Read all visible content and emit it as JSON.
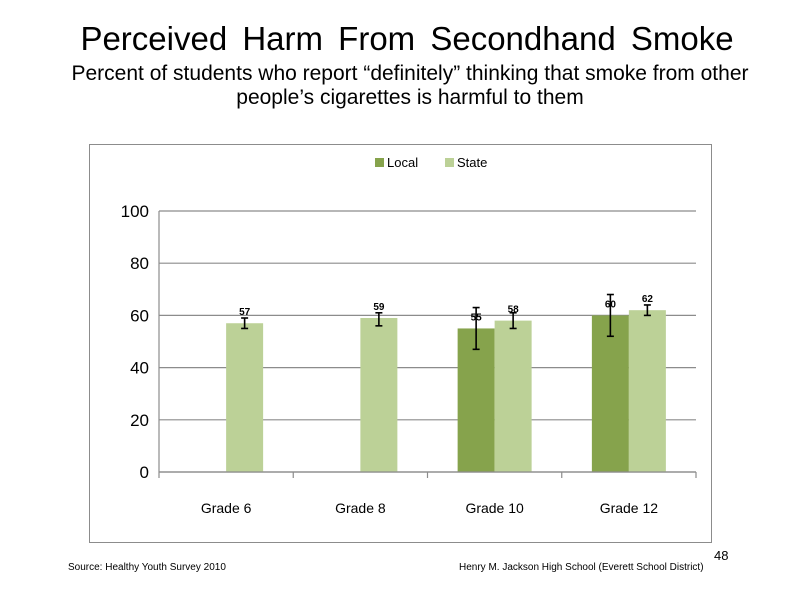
{
  "slide": {
    "title": "Perceived  Harm From Secondhand  Smoke",
    "subtitle": "Percent of students who report “definitely” thinking  that smoke from other people’s cigarettes is harmful to them",
    "source": "Source: Healthy  Youth Survey 2010",
    "credit": "Henry M.  Jackson High  School (Everett School District)",
    "page_number": "48"
  },
  "chart_data": {
    "type": "bar",
    "categories": [
      "Grade 6",
      "Grade 8",
      "Grade 10",
      "Grade 12"
    ],
    "series": [
      {
        "name": "Local",
        "color": "#86a34c",
        "values": [
          null,
          null,
          55,
          60
        ],
        "labels": [
          "",
          "",
          "55",
          "60"
        ],
        "error_low": [
          null,
          null,
          47,
          52
        ],
        "error_high": [
          null,
          null,
          63,
          68
        ]
      },
      {
        "name": "State",
        "color": "#bcd197",
        "values": [
          57,
          59,
          58,
          62
        ],
        "labels": [
          "57",
          "59",
          "58",
          "62"
        ],
        "error_low": [
          55,
          56,
          55,
          60
        ],
        "error_high": [
          59,
          61,
          61,
          64
        ]
      }
    ],
    "yticks": [
      "0",
      "20",
      "40",
      "60",
      "80",
      "100"
    ],
    "ylim": [
      0,
      100
    ],
    "grid": true,
    "legend_position": "top"
  }
}
